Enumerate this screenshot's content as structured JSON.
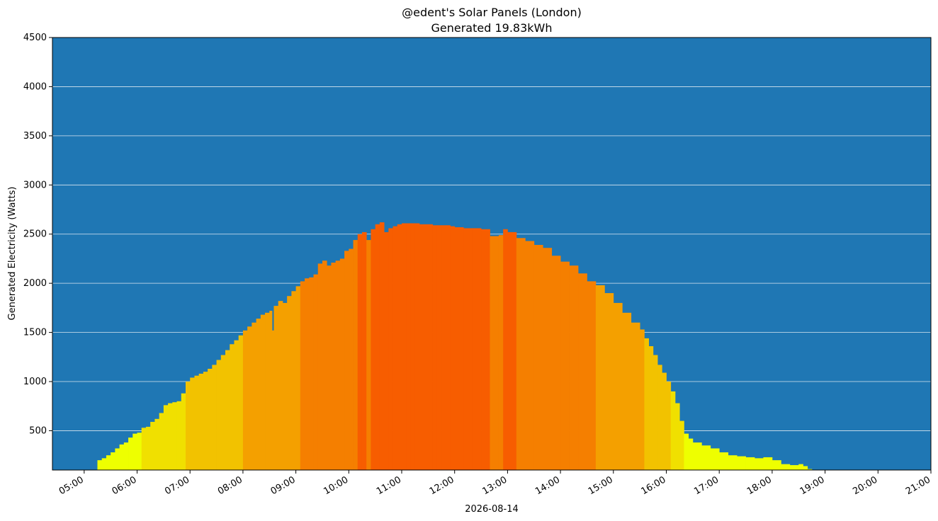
{
  "chart_data": {
    "type": "area",
    "title": "@edent's Solar Panels (London)",
    "subtitle": "Generated 19.83kWh",
    "xlabel": "2026-08-14",
    "ylabel": "Generated Electricity (Watts)",
    "ylim": [
      100,
      4500
    ],
    "xlim": [
      "04:24",
      "21:00"
    ],
    "grid": "horizontal",
    "background_color": "#1f77b4",
    "grid_color": "#d9e6f0",
    "y_ticks": [
      500,
      1000,
      1500,
      2000,
      2500,
      3000,
      3500,
      4000,
      4500
    ],
    "y_tick_labels": [
      "500",
      "1000",
      "1500",
      "2000",
      "2500",
      "3000",
      "3500",
      "4000",
      "4500"
    ],
    "x_ticks": [
      "05:00",
      "06:00",
      "07:00",
      "08:00",
      "09:00",
      "10:00",
      "11:00",
      "12:00",
      "13:00",
      "14:00",
      "15:00",
      "16:00",
      "17:00",
      "18:00",
      "19:00",
      "20:00",
      "21:00"
    ],
    "color_bands": [
      {
        "threshold": 0,
        "color": "#eeff00"
      },
      {
        "threshold": 500,
        "color": "#f0e000"
      },
      {
        "threshold": 1000,
        "color": "#f2c200"
      },
      {
        "threshold": 1500,
        "color": "#f4a000"
      },
      {
        "threshold": 2000,
        "color": "#f57f00"
      },
      {
        "threshold": 2500,
        "color": "#f75d00"
      }
    ],
    "series": [
      {
        "x": [
          "05:15",
          "05:20",
          "05:25",
          "05:30",
          "05:35",
          "05:40",
          "05:45",
          "05:50",
          "05:55",
          "06:00",
          "06:05",
          "06:10",
          "06:15",
          "06:20",
          "06:25",
          "06:30",
          "06:35",
          "06:40",
          "06:45",
          "06:50",
          "06:55",
          "07:00",
          "07:05",
          "07:10",
          "07:15",
          "07:20",
          "07:25",
          "07:30",
          "07:35",
          "07:40",
          "07:45",
          "07:50",
          "07:55",
          "08:00",
          "08:05",
          "08:10",
          "08:15",
          "08:20",
          "08:25",
          "08:30",
          "08:33",
          "08:35",
          "08:40",
          "08:45",
          "08:50",
          "08:55",
          "09:00",
          "09:05",
          "09:10",
          "09:15",
          "09:20",
          "09:25",
          "09:30",
          "09:35",
          "09:40",
          "09:45",
          "09:50",
          "09:55",
          "10:00",
          "10:05",
          "10:10",
          "10:15",
          "10:20",
          "10:25",
          "10:30",
          "10:35",
          "10:40",
          "10:45",
          "10:50",
          "10:55",
          "11:00",
          "11:05",
          "11:10",
          "11:15",
          "11:20",
          "11:25",
          "11:30",
          "11:35",
          "11:40",
          "11:45",
          "11:50",
          "11:55",
          "12:00",
          "12:10",
          "12:20",
          "12:30",
          "12:40",
          "12:50",
          "12:55",
          "13:00",
          "13:10",
          "13:20",
          "13:30",
          "13:40",
          "13:50",
          "14:00",
          "14:10",
          "14:20",
          "14:30",
          "14:40",
          "14:50",
          "15:00",
          "15:10",
          "15:20",
          "15:30",
          "15:35",
          "15:40",
          "15:45",
          "15:50",
          "15:55",
          "16:00",
          "16:05",
          "16:10",
          "16:15",
          "16:20",
          "16:25",
          "16:30",
          "16:40",
          "16:50",
          "17:00",
          "17:10",
          "17:20",
          "17:30",
          "17:40",
          "17:50",
          "18:00",
          "18:10",
          "18:20",
          "18:30",
          "18:35",
          "18:40"
        ],
        "y": [
          200,
          220,
          250,
          280,
          320,
          360,
          380,
          430,
          470,
          480,
          530,
          540,
          590,
          620,
          680,
          760,
          780,
          790,
          800,
          880,
          1000,
          1040,
          1060,
          1080,
          1100,
          1130,
          1170,
          1220,
          1270,
          1320,
          1380,
          1420,
          1470,
          1520,
          1560,
          1600,
          1640,
          1680,
          1700,
          1720,
          1520,
          1770,
          1820,
          1800,
          1870,
          1920,
          1970,
          2020,
          2050,
          2060,
          2090,
          2200,
          2230,
          2180,
          2210,
          2230,
          2250,
          2330,
          2350,
          2440,
          2500,
          2520,
          2440,
          2550,
          2600,
          2620,
          2520,
          2560,
          2580,
          2600,
          2610,
          2610,
          2610,
          2610,
          2600,
          2600,
          2600,
          2590,
          2590,
          2590,
          2590,
          2580,
          2570,
          2560,
          2560,
          2550,
          2480,
          2490,
          2550,
          2520,
          2460,
          2430,
          2390,
          2360,
          2280,
          2220,
          2180,
          2100,
          2020,
          1980,
          1900,
          1800,
          1700,
          1600,
          1530,
          1440,
          1360,
          1270,
          1170,
          1090,
          1000,
          900,
          780,
          600,
          470,
          420,
          380,
          350,
          320,
          280,
          250,
          240,
          230,
          220,
          230,
          200,
          160,
          150,
          160,
          140,
          110
        ]
      }
    ]
  }
}
